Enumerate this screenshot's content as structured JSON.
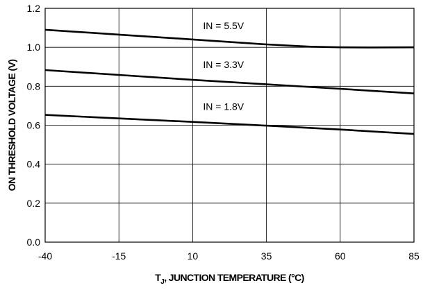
{
  "chart_data": {
    "type": "line",
    "xlabel_main": "T",
    "xlabel_sub": "J",
    "xlabel_rest": ", JUNCTION TEMPERATURE (°C)",
    "ylabel": "ON THRESHOLD VOLTAGE (V)",
    "xlim": [
      -40,
      85
    ],
    "ylim": [
      0.0,
      1.2
    ],
    "x_ticks": [
      -40,
      -15,
      10,
      35,
      60,
      85
    ],
    "x_tick_labels": [
      "-40",
      "-15",
      "10",
      "35",
      "60",
      "85"
    ],
    "y_ticks": [
      0.0,
      0.2,
      0.4,
      0.6,
      0.8,
      1.0,
      1.2
    ],
    "y_tick_labels": [
      "0.0",
      "0.2",
      "0.4",
      "0.6",
      "0.8",
      "1.0",
      "1.2"
    ],
    "grid": true,
    "series": [
      {
        "name": "IN = 5.5V",
        "x": [
          -40,
          -15,
          10,
          35,
          50,
          60,
          70,
          85
        ],
        "y": [
          1.09,
          1.065,
          1.04,
          1.015,
          1.003,
          1.0,
          0.999,
          1.0
        ]
      },
      {
        "name": "IN = 3.3V",
        "x": [
          -40,
          -15,
          10,
          35,
          60,
          85
        ],
        "y": [
          0.883,
          0.858,
          0.833,
          0.81,
          0.787,
          0.763
        ]
      },
      {
        "name": "IN = 1.8V",
        "x": [
          -40,
          -15,
          10,
          35,
          60,
          85
        ],
        "y": [
          0.653,
          0.635,
          0.617,
          0.598,
          0.578,
          0.555
        ]
      }
    ],
    "label_anchor": [
      {
        "x": 10,
        "y": 1.09
      },
      {
        "x": 10,
        "y": 0.89
      },
      {
        "x": 10,
        "y": 0.675
      }
    ]
  }
}
